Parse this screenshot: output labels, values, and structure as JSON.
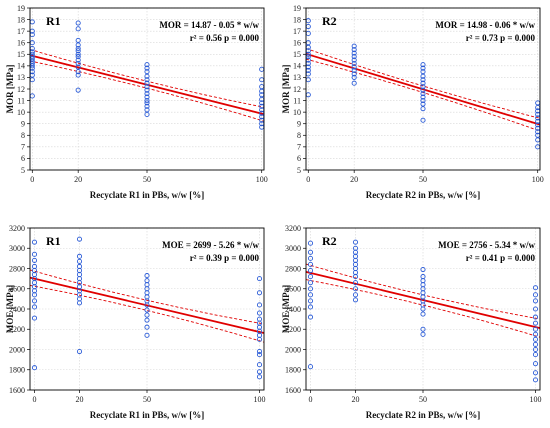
{
  "chart_data": [
    {
      "type": "scatter",
      "title": "R1",
      "xlabel": "Recyclate R1 in PBs, w/w  [%]",
      "ylabel": "MOR  [MPa]",
      "xlim": [
        -1,
        101
      ],
      "ylim": [
        5,
        19
      ],
      "xticks": [
        0,
        20,
        50,
        100
      ],
      "yticks": [
        5,
        6,
        7,
        8,
        9,
        10,
        11,
        12,
        13,
        14,
        15,
        16,
        17,
        18,
        19
      ],
      "equation": "MOR = 14.87 - 0.05 * w/w",
      "stats": "r² = 0.56    p = 0.000",
      "fit": {
        "intercept": 14.87,
        "slope": -0.05,
        "band": [
          0.45,
          0.3,
          0.6
        ]
      },
      "marker_color": "#2a5bd7",
      "line_color": "#e00000",
      "points": [
        {
          "x": 0,
          "ys": [
            11.4,
            12.8,
            13.2,
            13.5,
            13.8,
            14.0,
            14.2,
            14.4,
            14.6,
            14.8,
            15.0,
            15.2,
            15.5,
            16.0,
            16.7,
            17.0,
            17.8
          ]
        },
        {
          "x": 20,
          "ys": [
            11.9,
            13.2,
            13.5,
            13.9,
            14.2,
            14.5,
            14.8,
            15.0,
            15.3,
            15.5,
            15.8,
            16.2,
            17.2,
            17.7
          ]
        },
        {
          "x": 50,
          "ys": [
            9.8,
            10.2,
            10.5,
            10.8,
            11.0,
            11.3,
            11.6,
            11.9,
            12.2,
            12.5,
            12.8,
            13.1,
            13.5,
            13.8,
            14.1
          ]
        },
        {
          "x": 100,
          "ys": [
            8.7,
            9.0,
            9.3,
            9.6,
            9.9,
            10.2,
            10.5,
            10.8,
            11.1,
            11.5,
            11.8,
            12.2,
            12.8,
            13.7
          ]
        }
      ]
    },
    {
      "type": "scatter",
      "title": "R2",
      "xlabel": "Recyclate R2 in PBs, w/w  [%]",
      "ylabel": "MOR  [MPa]",
      "xlim": [
        -1,
        101
      ],
      "ylim": [
        5,
        19
      ],
      "xticks": [
        0,
        20,
        50,
        100
      ],
      "yticks": [
        5,
        6,
        7,
        8,
        9,
        10,
        11,
        12,
        13,
        14,
        15,
        16,
        17,
        18,
        19
      ],
      "equation": "MOR = 14.98 - 0.06 * w/w",
      "stats": "r² = 0.73    p = 0.000",
      "fit": {
        "intercept": 14.98,
        "slope": -0.06,
        "band": [
          0.4,
          0.28,
          0.55
        ]
      },
      "marker_color": "#2a5bd7",
      "line_color": "#e00000",
      "points": [
        {
          "x": 0,
          "ys": [
            11.5,
            12.8,
            13.3,
            13.6,
            13.9,
            14.2,
            14.5,
            14.8,
            15.0,
            15.3,
            15.6,
            16.0,
            16.8,
            17.4,
            17.9
          ]
        },
        {
          "x": 20,
          "ys": [
            12.5,
            13.0,
            13.3,
            13.6,
            13.9,
            14.2,
            14.5,
            14.8,
            15.1,
            15.4,
            15.7
          ]
        },
        {
          "x": 50,
          "ys": [
            9.3,
            10.3,
            10.7,
            11.0,
            11.3,
            11.6,
            11.9,
            12.2,
            12.5,
            12.8,
            13.1,
            13.5,
            13.8,
            14.1
          ]
        },
        {
          "x": 100,
          "ys": [
            7.0,
            7.6,
            8.0,
            8.3,
            8.6,
            8.9,
            9.2,
            9.5,
            9.8,
            10.1,
            10.4,
            10.8
          ]
        }
      ]
    },
    {
      "type": "scatter",
      "title": "R1",
      "xlabel": "Recyclate R1 in PBs, w/w  [%]",
      "ylabel": "MOE  [MPa]",
      "xlim": [
        -2,
        102
      ],
      "ylim": [
        1600,
        3200
      ],
      "xticks": [
        0,
        20,
        50,
        100
      ],
      "yticks": [
        1600,
        1800,
        2000,
        2200,
        2400,
        2600,
        2800,
        3000,
        3200
      ],
      "equation": "MOE = 2699 - 5.26 * w/w",
      "stats": "r² = 0.39    p = 0.000",
      "fit": {
        "intercept": 2699,
        "slope": -5.26,
        "band": [
          70,
          50,
          90
        ]
      },
      "marker_color": "#2a5bd7",
      "line_color": "#e00000",
      "points": [
        {
          "x": 0,
          "ys": [
            1820,
            2310,
            2420,
            2480,
            2540,
            2580,
            2620,
            2660,
            2700,
            2740,
            2780,
            2820,
            2880,
            2940,
            3060
          ]
        },
        {
          "x": 20,
          "ys": [
            1980,
            2460,
            2500,
            2540,
            2580,
            2620,
            2660,
            2700,
            2740,
            2780,
            2820,
            2870,
            2920,
            3090
          ]
        },
        {
          "x": 50,
          "ys": [
            2140,
            2220,
            2290,
            2340,
            2390,
            2440,
            2480,
            2520,
            2560,
            2600,
            2640,
            2680,
            2730
          ]
        },
        {
          "x": 100,
          "ys": [
            1730,
            1780,
            1850,
            1950,
            1980,
            2100,
            2140,
            2180,
            2220,
            2260,
            2300,
            2360,
            2440,
            2560,
            2700
          ]
        }
      ]
    },
    {
      "type": "scatter",
      "title": "R2",
      "xlabel": "Recyclate R2 in PBs, w/w  [%]",
      "ylabel": "MOE  [MPa]",
      "xlim": [
        -2,
        102
      ],
      "ylim": [
        1600,
        3200
      ],
      "xticks": [
        0,
        20,
        50,
        100
      ],
      "yticks": [
        1600,
        1800,
        2000,
        2200,
        2400,
        2600,
        2800,
        3000,
        3200
      ],
      "equation": "MOE = 2756 - 5.34 * w/w",
      "stats": "r² = 0.41    p = 0.000",
      "fit": {
        "intercept": 2756,
        "slope": -5.34,
        "band": [
          70,
          50,
          90
        ]
      },
      "marker_color": "#2a5bd7",
      "line_color": "#e00000",
      "points": [
        {
          "x": 0,
          "ys": [
            1830,
            2320,
            2420,
            2480,
            2540,
            2600,
            2660,
            2720,
            2780,
            2840,
            2900,
            2960,
            3050
          ]
        },
        {
          "x": 20,
          "ys": [
            2490,
            2540,
            2600,
            2660,
            2720,
            2760,
            2800,
            2840,
            2880,
            2920,
            2960,
            3000,
            3060
          ]
        },
        {
          "x": 50,
          "ys": [
            2150,
            2200,
            2350,
            2400,
            2440,
            2480,
            2520,
            2560,
            2600,
            2640,
            2680,
            2720,
            2790
          ]
        },
        {
          "x": 100,
          "ys": [
            1700,
            1770,
            1860,
            1950,
            2000,
            2050,
            2100,
            2150,
            2200,
            2260,
            2320,
            2400,
            2480,
            2540,
            2610
          ]
        }
      ]
    }
  ]
}
